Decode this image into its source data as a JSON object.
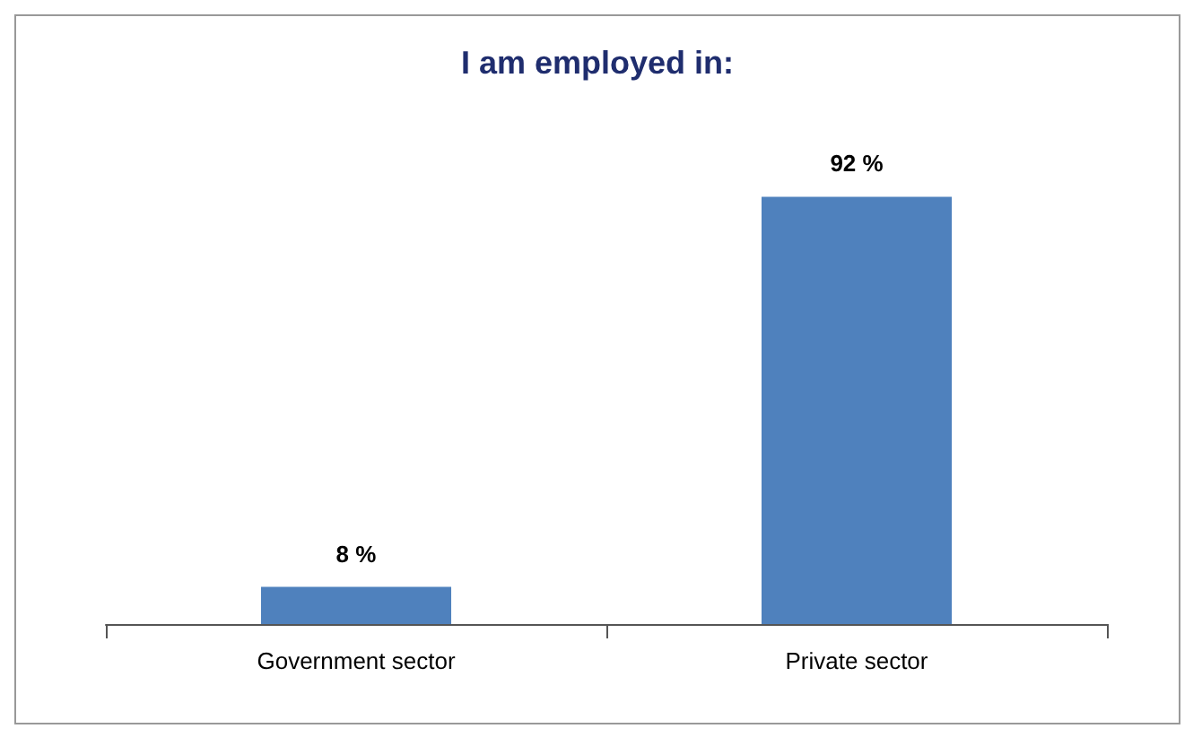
{
  "chart_data": {
    "type": "bar",
    "title": "I am employed in:",
    "categories": [
      "Government sector",
      "Private sector"
    ],
    "values": [
      8,
      92
    ],
    "value_labels": [
      "8 %",
      "92 %"
    ],
    "color": "#4f81bd",
    "tick_labels": "x"
  }
}
